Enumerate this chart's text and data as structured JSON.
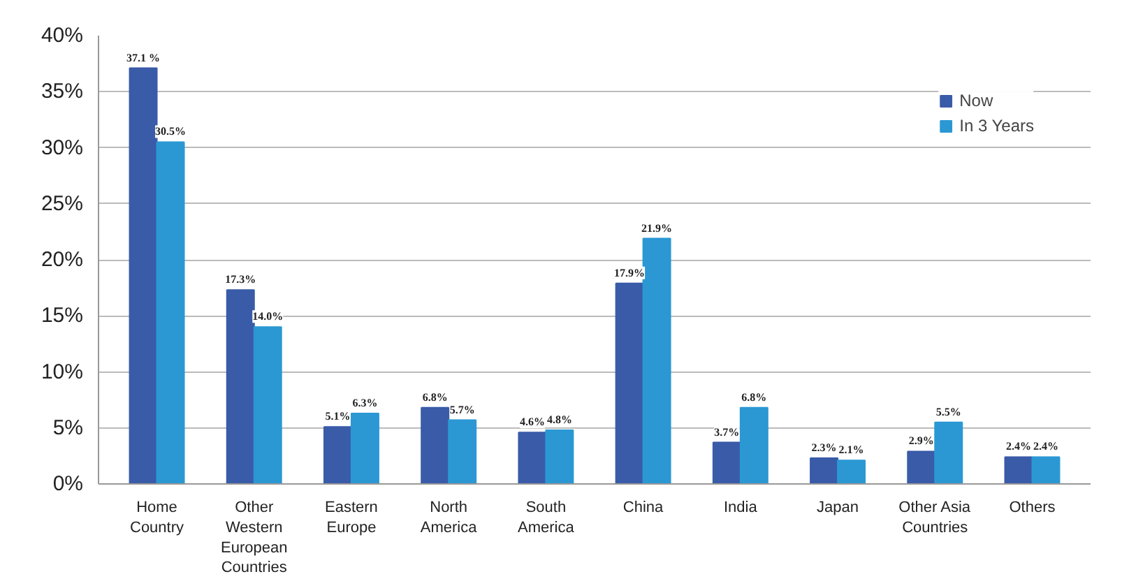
{
  "chart_data": {
    "type": "bar",
    "categories": [
      "Home Country",
      "Other Western European Countries",
      "Eastern Europe",
      "North America",
      "South America",
      "China",
      "India",
      "Japan",
      "Other Asia Countries",
      "Others"
    ],
    "series": [
      {
        "name": "Now",
        "color": "#3a5ba8",
        "values": [
          37.1,
          17.3,
          5.1,
          6.8,
          4.6,
          17.9,
          3.7,
          2.3,
          2.9,
          2.4
        ],
        "value_labels": [
          "37.1 %",
          "17.3%",
          "5.1%",
          "6.8%",
          "4.6%",
          "17.9%",
          "3.7%",
          "2.3%",
          "2.9%",
          "2.4%"
        ]
      },
      {
        "name": "In 3 Years",
        "color": "#2b98d4",
        "values": [
          30.5,
          14.0,
          6.3,
          5.7,
          4.8,
          21.9,
          6.8,
          2.1,
          5.5,
          2.4
        ],
        "value_labels": [
          "30.5%",
          "14.0%",
          "6.3%",
          "5.7%",
          "4.8%",
          "21.9%",
          "6.8%",
          "2.1%",
          "5.5%",
          "2.4%"
        ]
      }
    ],
    "ylim": [
      0,
      40
    ],
    "yticks": [
      {
        "value": 0,
        "label": "0%"
      },
      {
        "value": 5,
        "label": "5%"
      },
      {
        "value": 10,
        "label": "10%"
      },
      {
        "value": 15,
        "label": "15%"
      },
      {
        "value": 20,
        "label": "20%"
      },
      {
        "value": 25,
        "label": "25%"
      },
      {
        "value": 30,
        "label": "30%"
      },
      {
        "value": 35,
        "label": "35%"
      },
      {
        "value": 40,
        "label": "40%"
      }
    ],
    "grid": "y",
    "legend": "top right"
  }
}
